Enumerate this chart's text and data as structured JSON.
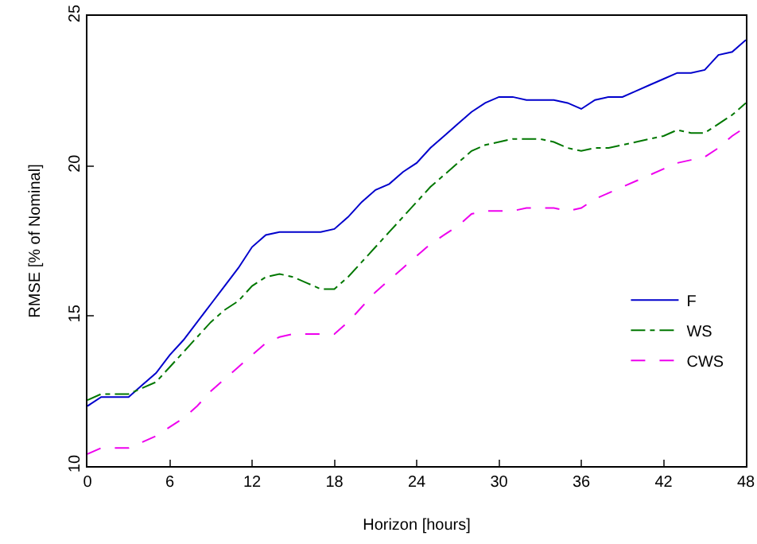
{
  "chart_data": {
    "type": "line",
    "xlabel": "Horizon [hours]",
    "ylabel": "RMSE [% of Nominal]",
    "x": [
      0,
      1,
      2,
      3,
      4,
      5,
      6,
      7,
      8,
      9,
      10,
      11,
      12,
      13,
      14,
      15,
      16,
      17,
      18,
      19,
      20,
      21,
      22,
      23,
      24,
      25,
      26,
      27,
      28,
      29,
      30,
      31,
      32,
      33,
      34,
      35,
      36,
      37,
      38,
      39,
      40,
      41,
      42,
      43,
      44,
      45,
      46,
      47,
      48
    ],
    "series": [
      {
        "name": "F",
        "color": "#0000cc",
        "line_style": "solid",
        "values": [
          12.0,
          12.3,
          12.3,
          12.3,
          12.7,
          13.1,
          13.7,
          14.2,
          14.8,
          15.4,
          16.0,
          16.6,
          17.3,
          17.7,
          17.8,
          17.8,
          17.8,
          17.8,
          17.9,
          18.3,
          18.8,
          19.2,
          19.4,
          19.8,
          20.1,
          20.6,
          21.0,
          21.4,
          21.8,
          22.1,
          22.3,
          22.3,
          22.2,
          22.2,
          22.2,
          22.1,
          21.9,
          22.2,
          22.3,
          22.3,
          22.5,
          22.7,
          22.9,
          23.1,
          23.1,
          23.2,
          23.7,
          23.8,
          24.2
        ]
      },
      {
        "name": "WS",
        "color": "#007700",
        "line_style": "dashdot",
        "values": [
          12.2,
          12.4,
          12.4,
          12.4,
          12.6,
          12.8,
          13.3,
          13.8,
          14.3,
          14.8,
          15.2,
          15.5,
          16.0,
          16.3,
          16.4,
          16.3,
          16.1,
          15.9,
          15.9,
          16.3,
          16.8,
          17.3,
          17.8,
          18.3,
          18.8,
          19.3,
          19.7,
          20.1,
          20.5,
          20.7,
          20.8,
          20.9,
          20.9,
          20.9,
          20.8,
          20.6,
          20.5,
          20.6,
          20.6,
          20.7,
          20.8,
          20.9,
          21.0,
          21.2,
          21.1,
          21.1,
          21.4,
          21.7,
          22.1
        ]
      },
      {
        "name": "CWS",
        "color": "#ee00ee",
        "line_style": "dashed",
        "values": [
          10.4,
          10.6,
          10.6,
          10.6,
          10.8,
          11.0,
          11.3,
          11.6,
          12.0,
          12.5,
          12.9,
          13.3,
          13.7,
          14.1,
          14.3,
          14.4,
          14.4,
          14.4,
          14.4,
          14.8,
          15.3,
          15.8,
          16.2,
          16.6,
          17.0,
          17.4,
          17.7,
          18.0,
          18.4,
          18.5,
          18.5,
          18.5,
          18.6,
          18.6,
          18.6,
          18.5,
          18.6,
          18.9,
          19.1,
          19.3,
          19.5,
          19.7,
          19.9,
          20.1,
          20.2,
          20.3,
          20.6,
          21.0,
          21.3
        ]
      }
    ],
    "xlim": [
      0,
      48
    ],
    "xticks": [
      0,
      6,
      12,
      18,
      24,
      30,
      36,
      42,
      48
    ],
    "ylim": [
      10,
      25
    ],
    "yticks": [
      10,
      15,
      20,
      25
    ],
    "grid": false,
    "legend": "bottom right",
    "marker": "none"
  }
}
